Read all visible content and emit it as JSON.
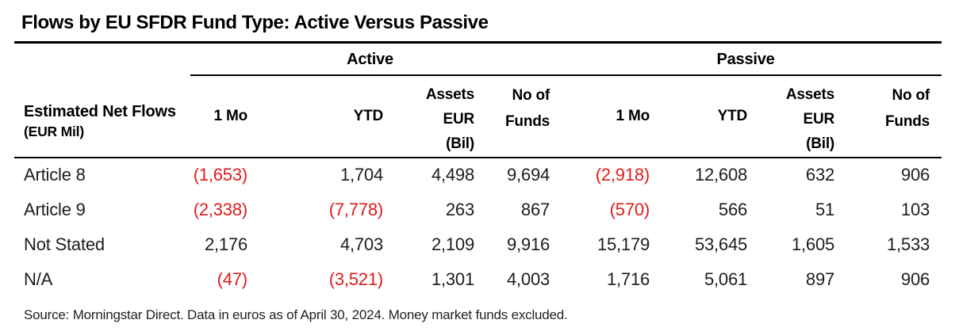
{
  "title": "Flows by EU SFDR Fund Type: Active Versus Passive",
  "table": {
    "row_header_line1": "Estimated Net Flows",
    "row_header_line2": "(EUR Mil)",
    "groups": [
      "Active",
      "Passive"
    ],
    "columns": [
      "1 Mo",
      "YTD",
      "Assets\nEUR\n(Bil)",
      "No of\nFunds",
      "1 Mo",
      "YTD",
      "Assets\nEUR\n(Bil)",
      "No of\nFunds"
    ],
    "rows": [
      {
        "label": "Article 8",
        "values": [
          "(1,653)",
          "1,704",
          "4,498",
          "9,694",
          "(2,918)",
          "12,608",
          "632",
          "906"
        ]
      },
      {
        "label": "Article 9",
        "values": [
          "(2,338)",
          "(7,778)",
          "263",
          "867",
          "(570)",
          "566",
          "51",
          "103"
        ]
      },
      {
        "label": "Not Stated",
        "values": [
          "2,176",
          "4,703",
          "2,109",
          "9,916",
          "15,179",
          "53,645",
          "1,605",
          "1,533"
        ]
      },
      {
        "label": "N/A",
        "values": [
          "(47)",
          "(3,521)",
          "1,301",
          "4,003",
          "1,716",
          "5,061",
          "897",
          "906"
        ]
      }
    ]
  },
  "source": "Source: Morningstar Direct. Data in euros as of April 30, 2024. Money market funds excluded.",
  "colors": {
    "negative": "#e01a1a",
    "heading": "#000000",
    "body_text": "#1d1d1d"
  },
  "chart_data": {
    "type": "table",
    "title": "Flows by EU SFDR Fund Type: Active Versus Passive",
    "row_header": "Estimated Net Flows (EUR Mil)",
    "column_groups": [
      "Active",
      "Passive"
    ],
    "columns": [
      "Active 1 Mo",
      "Active YTD",
      "Active Assets EUR (Bil)",
      "Active No of Funds",
      "Passive 1 Mo",
      "Passive YTD",
      "Passive Assets EUR (Bil)",
      "Passive No of Funds"
    ],
    "rows": [
      {
        "label": "Article 8",
        "values": [
          -1653,
          1704,
          4498,
          9694,
          -2918,
          12608,
          632,
          906
        ]
      },
      {
        "label": "Article 9",
        "values": [
          -2338,
          -7778,
          263,
          867,
          -570,
          566,
          51,
          103
        ]
      },
      {
        "label": "Not Stated",
        "values": [
          2176,
          4703,
          2109,
          9916,
          15179,
          53645,
          1605,
          1533
        ]
      },
      {
        "label": "N/A",
        "values": [
          -47,
          -3521,
          1301,
          4003,
          1716,
          5061,
          897,
          906
        ]
      }
    ],
    "notes": "Negative values shown in parentheses and rendered in red."
  }
}
